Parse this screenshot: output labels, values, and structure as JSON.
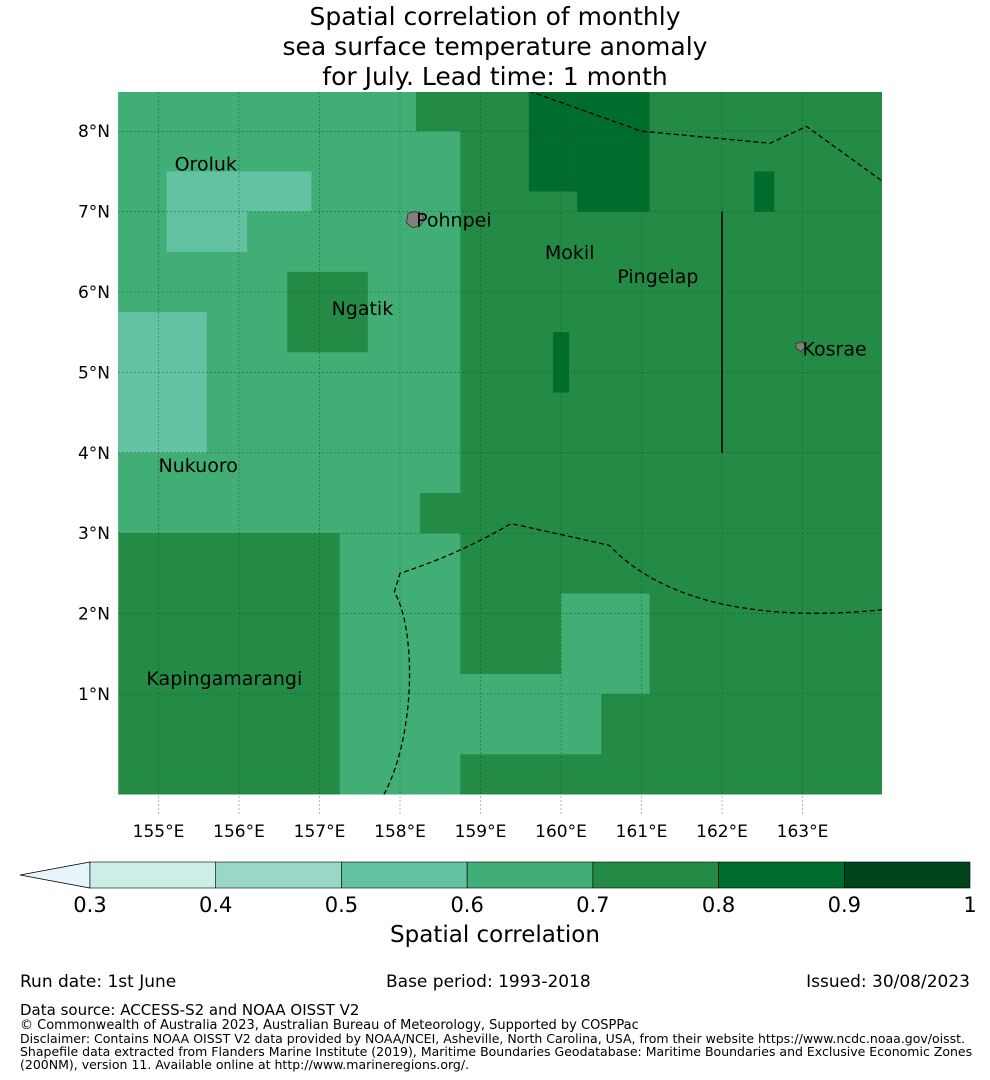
{
  "title_lines": [
    "Spatial correlation of monthly",
    "sea surface temperature anomaly",
    "for July. Lead time: 1 month"
  ],
  "map": {
    "lon_range": [
      154.5,
      164.0
    ],
    "lat_range": [
      -0.25,
      8.5
    ],
    "lon_ticks": [
      "155°E",
      "156°E",
      "157°E",
      "158°E",
      "159°E",
      "160°E",
      "161°E",
      "162°E",
      "163°E"
    ],
    "lat_ticks": [
      "1°N",
      "2°N",
      "3°N",
      "4°N",
      "5°N",
      "6°N",
      "7°N",
      "8°N"
    ],
    "places": [
      {
        "name": "Oroluk",
        "lon": 155.2,
        "lat": 7.6
      },
      {
        "name": "Pohnpei",
        "lon": 158.2,
        "lat": 6.9
      },
      {
        "name": "Mokil",
        "lon": 159.8,
        "lat": 6.5
      },
      {
        "name": "Pingelap",
        "lon": 160.7,
        "lat": 6.2
      },
      {
        "name": "Ngatik",
        "lon": 157.15,
        "lat": 5.8
      },
      {
        "name": "Kosrae",
        "lon": 163.0,
        "lat": 5.3
      },
      {
        "name": "Nukuoro",
        "lon": 155.0,
        "lat": 3.85
      },
      {
        "name": "Kapingamarangi",
        "lon": 154.85,
        "lat": 1.2
      }
    ]
  },
  "chart_data": {
    "type": "heatmap",
    "title": "Spatial correlation of monthly sea surface temperature anomaly for July. Lead time: 1 month",
    "xlabel": "",
    "ylabel": "",
    "xlim": [
      154.5,
      164.0
    ],
    "ylim": [
      -0.25,
      8.5
    ],
    "grid": true,
    "value_classes": [
      {
        "range": "<0.3",
        "color": "#e5f5f9"
      },
      {
        "range": "0.3-0.4",
        "color": "#cceee6"
      },
      {
        "range": "0.4-0.5",
        "color": "#99d8c9"
      },
      {
        "range": "0.5-0.6",
        "color": "#62c2a2"
      },
      {
        "range": "0.6-0.7",
        "color": "#41ae76"
      },
      {
        "range": "0.7-0.8",
        "color": "#238b45"
      },
      {
        "range": "0.8-0.9",
        "color": "#006d2c"
      },
      {
        "range": "0.9-1",
        "color": "#00441b"
      }
    ],
    "regions": [
      {
        "class": "0.7-0.8",
        "lon": [
          154.5,
          164.0
        ],
        "lat": [
          -0.25,
          8.5
        ]
      },
      {
        "class": "0.6-0.7",
        "lon": [
          154.5,
          158.2
        ],
        "lat": [
          8.0,
          8.5
        ]
      },
      {
        "class": "0.6-0.7",
        "lon": [
          154.5,
          158.75
        ],
        "lat": [
          3.5,
          8.0
        ]
      },
      {
        "class": "0.6-0.7",
        "lon": [
          154.5,
          158.25
        ],
        "lat": [
          3.0,
          3.5
        ]
      },
      {
        "class": "0.6-0.7",
        "lon": [
          157.25,
          158.75
        ],
        "lat": [
          -0.25,
          3.0
        ]
      },
      {
        "class": "0.6-0.7",
        "lon": [
          158.75,
          160.5
        ],
        "lat": [
          0.25,
          1.25
        ]
      },
      {
        "class": "0.6-0.7",
        "lon": [
          160.0,
          161.1
        ],
        "lat": [
          1.0,
          2.25
        ]
      },
      {
        "class": "0.5-0.6",
        "lon": [
          155.1,
          156.9
        ],
        "lat": [
          7.0,
          7.5
        ]
      },
      {
        "class": "0.5-0.6",
        "lon": [
          155.1,
          156.1
        ],
        "lat": [
          6.5,
          7.0
        ]
      },
      {
        "class": "0.5-0.6",
        "lon": [
          154.5,
          155.6
        ],
        "lat": [
          4.0,
          5.75
        ]
      },
      {
        "class": "0.7-0.8",
        "lon": [
          156.6,
          157.6
        ],
        "lat": [
          5.25,
          6.25
        ]
      },
      {
        "class": "0.8-0.9",
        "lon": [
          160.2,
          161.1
        ],
        "lat": [
          7.0,
          8.5
        ]
      },
      {
        "class": "0.8-0.9",
        "lon": [
          159.6,
          160.2
        ],
        "lat": [
          7.25,
          8.5
        ]
      },
      {
        "class": "0.8-0.9",
        "lon": [
          162.4,
          162.65
        ],
        "lat": [
          7.0,
          7.5
        ]
      },
      {
        "class": "0.8-0.9",
        "lon": [
          159.9,
          160.1
        ],
        "lat": [
          4.75,
          5.5
        ]
      }
    ]
  },
  "colorbar": {
    "ticks": [
      "0.3",
      "0.4",
      "0.5",
      "0.6",
      "0.7",
      "0.8",
      "0.9",
      "1"
    ],
    "label": "Spatial correlation"
  },
  "footer": {
    "run_date": "Run date: 1st June",
    "base_period": "Base period: 1993-2018",
    "issued": "Issued: 30/08/2023",
    "data_source": "Data source: ACCESS-S2 and NOAA OISST V2",
    "copyright": "© Commonwealth of Australia 2023, Australian Bureau of Meteorology, Supported by COSPPac",
    "disclaimer_lines": [
      "Disclaimer: Contains NOAA OISST V2 data provided by NOAA/NCEI, Asheville, North Carolina, USA, from their website https://www.ncdc.noaa.gov/oisst.",
      "Shapefile data extracted from Flanders Marine Institute (2019), Maritime Boundaries Geodatabase: Maritime Boundaries and Exclusive Economic Zones",
      "(200NM), version 11. Available online at http://www.marineregions.org/."
    ]
  }
}
